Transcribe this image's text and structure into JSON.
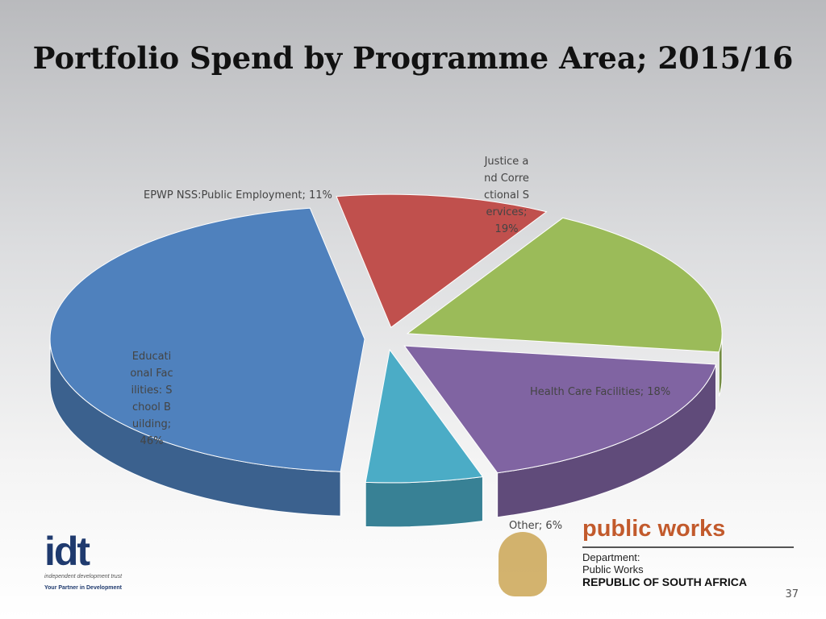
{
  "chart_data": {
    "type": "pie3d",
    "title": "Portfolio Spend by Programme Area; 2015/16",
    "values": [
      11,
      19,
      18,
      6,
      46
    ],
    "value_labels": [
      "EPWP NSS:Public Employment; 11%",
      "Justice and Correctional Services; 19%",
      "Health Care Facilities; 18%",
      "Other; 6%",
      "Educational Facilities: School Building; 46%"
    ],
    "colors": [
      "#c0504d",
      "#9bbb59",
      "#8064a2",
      "#4bacc6",
      "#4f81bd"
    ]
  },
  "footer": {
    "idt_logo": "idt",
    "idt_name": "independent development trust",
    "idt_tagline": "Your Partner in Development",
    "pw_logo": "public works",
    "pw_department": "Department:",
    "pw_name": "Public Works",
    "pw_country": "REPUBLIC OF SOUTH AFRICA",
    "page_number": "37"
  }
}
